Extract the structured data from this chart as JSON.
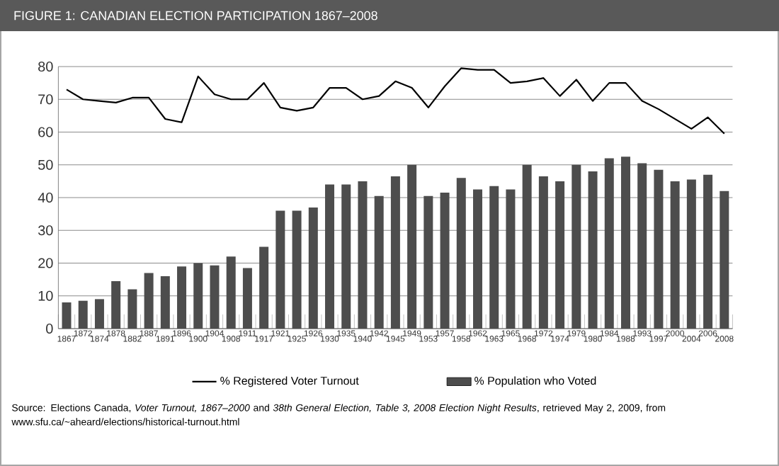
{
  "chart_data": {
    "type": "bar",
    "title": "FIGURE 1: CANADIAN ELECTION PARTICIPATION 1867–2008",
    "categories": [
      "1867",
      "1872",
      "1874",
      "1878",
      "1882",
      "1887",
      "1891",
      "1896",
      "1900",
      "1904",
      "1908",
      "1911",
      "1917",
      "1921",
      "1925",
      "1926",
      "1930",
      "1935",
      "1940",
      "1942",
      "1945",
      "1949",
      "1953",
      "1957",
      "1958",
      "1962",
      "1963",
      "1965",
      "1968",
      "1972",
      "1974",
      "1979",
      "1980",
      "1984",
      "1988",
      "1993",
      "1997",
      "2000",
      "2004",
      "2006",
      "2008"
    ],
    "series": [
      {
        "name": "% Registered Voter Turnout",
        "type": "line",
        "color": "#000000",
        "values": [
          73,
          70,
          69.5,
          69,
          70.5,
          70.5,
          64,
          63,
          77,
          71.5,
          70,
          70,
          75,
          67.5,
          66.5,
          67.5,
          73.5,
          73.5,
          70,
          71,
          75.5,
          73.5,
          67.5,
          74,
          79.5,
          79,
          79,
          75,
          75.5,
          76.5,
          71,
          76,
          69.5,
          75,
          75,
          69.5,
          67,
          64,
          61,
          64.5,
          59.5
        ]
      },
      {
        "name": "% Population who Voted",
        "color": "#4d4d4d",
        "values": [
          8,
          8.5,
          9,
          14.5,
          12,
          17,
          16,
          19,
          20,
          19.3,
          22,
          18.5,
          25,
          36,
          36,
          37,
          44,
          44,
          45,
          40.5,
          46.5,
          50,
          40.5,
          41.5,
          46,
          42.5,
          43.5,
          42.5,
          50,
          46.5,
          45,
          50,
          48,
          52,
          52.5,
          50.5,
          48.5,
          45,
          45.5,
          47,
          42
        ]
      }
    ],
    "ylim": [
      0,
      80
    ],
    "yticks": [
      0,
      10,
      20,
      30,
      40,
      50,
      60,
      70,
      80
    ],
    "grid": "y",
    "legend": "bottom",
    "annotations": [
      "Source: Elections Canada, *Voter Turnout, 1867–2000* and *38th General Election, Table 3, 2008 Election Night Results*, retrieved May 2, 2009, from www.sfu.ca/~aheard/elections/historical-turnout.html"
    ]
  }
}
